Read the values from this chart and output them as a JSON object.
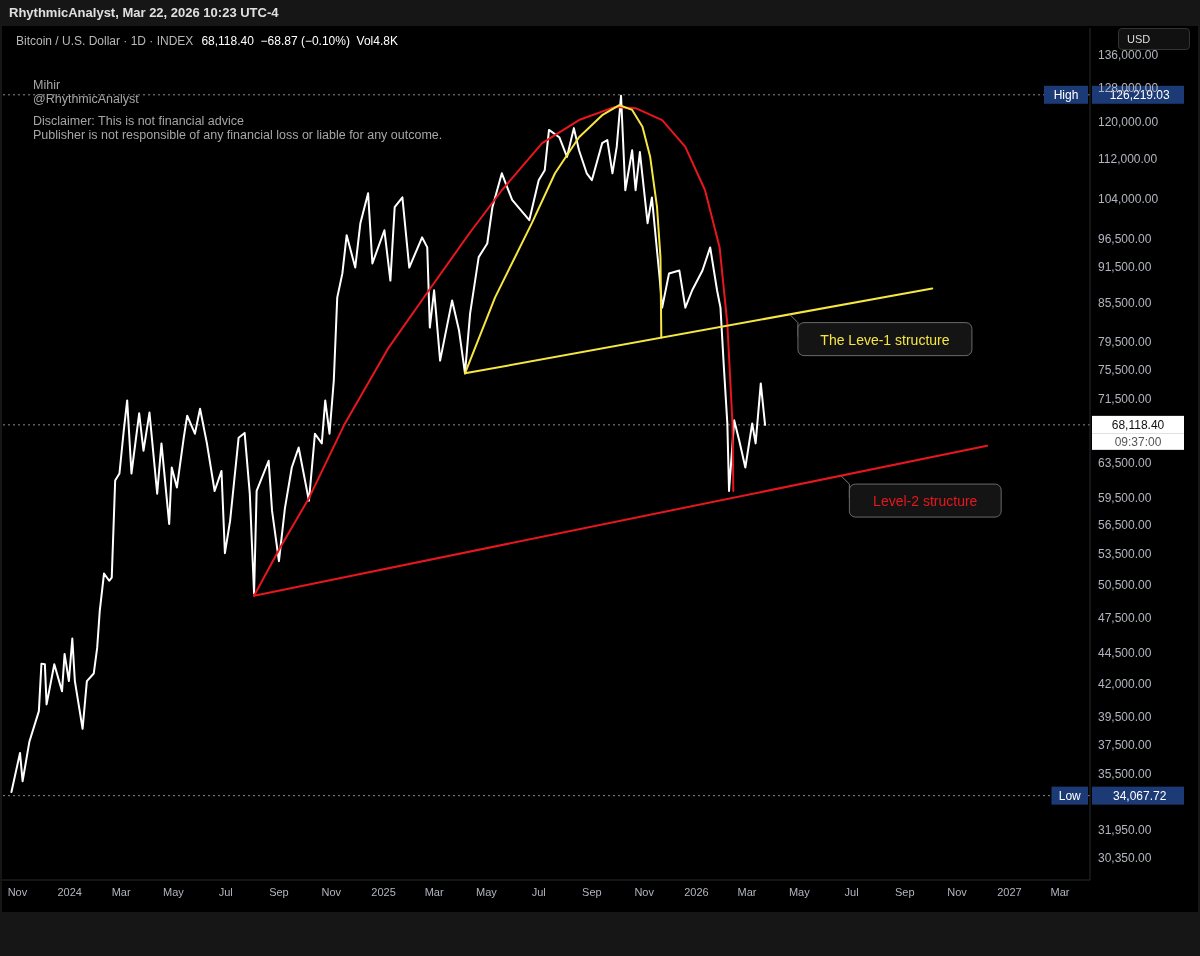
{
  "chart_data": {
    "type": "line",
    "title": "Bitcoin / U.S. Dollar · 1D · INDEX",
    "subtitle": "68,118.40  −68.87 (−0.10%)  Vol4.8K",
    "ylabel": "USD",
    "log": true,
    "grid": false,
    "marker": "none",
    "line_style": "solid",
    "xlim": [
      "2023-10-14",
      "2027-04-05"
    ],
    "xticks": [
      {
        "value": "2023-11-01",
        "label": "Nov"
      },
      {
        "value": "2024-01-01",
        "label": "2024"
      },
      {
        "value": "2024-03-01",
        "label": "Mar"
      },
      {
        "value": "2024-05-01",
        "label": "May"
      },
      {
        "value": "2024-07-01",
        "label": "Jul"
      },
      {
        "value": "2024-09-01",
        "label": "Sep"
      },
      {
        "value": "2024-11-01",
        "label": "Nov"
      },
      {
        "value": "2025-01-01",
        "label": "2025"
      },
      {
        "value": "2025-03-01",
        "label": "Mar"
      },
      {
        "value": "2025-05-01",
        "label": "May"
      },
      {
        "value": "2025-07-01",
        "label": "Jul"
      },
      {
        "value": "2025-09-01",
        "label": "Sep"
      },
      {
        "value": "2025-11-01",
        "label": "Nov"
      },
      {
        "value": "2026-01-01",
        "label": "2026"
      },
      {
        "value": "2026-03-01",
        "label": "Mar"
      },
      {
        "value": "2026-05-01",
        "label": "May"
      },
      {
        "value": "2026-07-01",
        "label": "Jul"
      },
      {
        "value": "2026-09-01",
        "label": "Sep"
      },
      {
        "value": "2026-11-01",
        "label": "Nov"
      },
      {
        "value": "2027-01-01",
        "label": "2027"
      },
      {
        "value": "2027-03-01",
        "label": "Mar"
      }
    ],
    "ylim": [
      29100,
      143000
    ],
    "yticks": [
      {
        "value": 30350,
        "label": "30,350.00"
      },
      {
        "value": 31950,
        "label": "31,950.00"
      },
      {
        "value": 35500,
        "label": "35,500.00"
      },
      {
        "value": 37500,
        "label": "37,500.00"
      },
      {
        "value": 39500,
        "label": "39,500.00"
      },
      {
        "value": 42000,
        "label": "42,000.00"
      },
      {
        "value": 44500,
        "label": "44,500.00"
      },
      {
        "value": 47500,
        "label": "47,500.00"
      },
      {
        "value": 50500,
        "label": "50,500.00"
      },
      {
        "value": 53500,
        "label": "53,500.00"
      },
      {
        "value": 56500,
        "label": "56,500.00"
      },
      {
        "value": 59500,
        "label": "59,500.00"
      },
      {
        "value": 63500,
        "label": "63,500.00"
      },
      {
        "value": 71500,
        "label": "71,500.00"
      },
      {
        "value": 75500,
        "label": "75,500.00"
      },
      {
        "value": 79500,
        "label": "79,500.00"
      },
      {
        "value": 85500,
        "label": "85,500.00"
      },
      {
        "value": 91500,
        "label": "91,500.00"
      },
      {
        "value": 96500,
        "label": "96,500.00"
      },
      {
        "value": 104000,
        "label": "104,000.00"
      },
      {
        "value": 112000,
        "label": "112,000.00"
      },
      {
        "value": 120000,
        "label": "120,000.00"
      },
      {
        "value": 128000,
        "label": "128,000.00"
      },
      {
        "value": 136000,
        "label": "136,000.00"
      }
    ],
    "ref_lines": [
      {
        "axis": "y",
        "value": 126219.03,
        "label": "High 126,219.03",
        "color": "#8a8a8a",
        "line_style": "dotted"
      },
      {
        "axis": "y",
        "value": 34067.72,
        "label": "Low 34,067.72",
        "color": "#8a8a8a",
        "line_style": "dotted"
      },
      {
        "axis": "y",
        "value": 68118.4,
        "label": "68,118.40",
        "color": "#8a8a8a",
        "line_style": "dotted"
      }
    ],
    "annotations": [
      "RhythmicAnalyst, Mar 22, 2026 10:23 UTC-4",
      "Mihir",
      "@RhythmicAnalyst",
      "Disclaimer: This is not financial advice",
      "Publisher is not responsible of any financial loss or liable for any outcome.",
      {
        "text": "The Leve-1 structure",
        "x": "2026-04-20",
        "y": 83700
      },
      {
        "text": "Level-2 structure",
        "x": "2026-06-19",
        "y": 61900
      },
      "09:37:00"
    ],
    "series": [
      {
        "color": "#ffffff",
        "x": [
          "2023-10-25",
          "2023-11-04",
          "2023-11-07",
          "2023-11-15",
          "2023-11-26",
          "2023-11-29",
          "2023-12-03",
          "2023-12-05",
          "2023-12-14",
          "2023-12-23",
          "2023-12-26",
          "2023-12-31",
          "2024-01-04",
          "2024-01-07",
          "2024-01-16",
          "2024-01-21",
          "2024-01-29",
          "2024-02-02",
          "2024-02-05",
          "2024-02-10",
          "2024-02-16",
          "2024-02-19",
          "2024-02-23",
          "2024-02-28",
          "2024-03-04",
          "2024-03-08",
          "2024-03-13",
          "2024-03-22",
          "2024-03-27",
          "2024-04-03",
          "2024-04-12",
          "2024-04-17",
          "2024-04-26",
          "2024-04-29",
          "2024-05-05",
          "2024-05-13",
          "2024-05-17",
          "2024-05-26",
          "2024-06-01",
          "2024-06-09",
          "2024-06-18",
          "2024-06-26",
          "2024-06-30",
          "2024-07-06",
          "2024-07-16",
          "2024-07-23",
          "2024-07-29",
          "2024-08-03",
          "2024-08-06",
          "2024-08-20",
          "2024-08-24",
          "2024-09-01",
          "2024-09-08",
          "2024-09-16",
          "2024-09-24",
          "2024-10-06",
          "2024-10-13",
          "2024-10-21",
          "2024-10-25",
          "2024-10-30",
          "2024-11-04",
          "2024-11-08",
          "2024-11-14",
          "2024-11-19",
          "2024-11-29",
          "2024-12-05",
          "2024-12-14",
          "2024-12-19",
          "2025-01-02",
          "2025-01-09",
          "2025-01-14",
          "2025-01-23",
          "2025-01-31",
          "2025-02-15",
          "2025-02-21",
          "2025-02-24",
          "2025-03-01",
          "2025-03-08",
          "2025-03-22",
          "2025-03-30",
          "2025-04-06",
          "2025-04-12",
          "2025-04-22",
          "2025-05-02",
          "2025-05-08",
          "2025-05-19",
          "2025-05-31",
          "2025-06-20",
          "2025-07-01",
          "2025-07-08",
          "2025-07-13",
          "2025-07-25",
          "2025-08-03",
          "2025-08-11",
          "2025-08-17",
          "2025-08-26",
          "2025-09-01",
          "2025-09-13",
          "2025-09-19",
          "2025-09-25",
          "2025-09-30",
          "2025-10-05",
          "2025-10-10",
          "2025-10-18",
          "2025-10-22",
          "2025-10-27",
          "2025-11-05",
          "2025-11-10",
          "2025-11-19",
          "2025-11-22",
          "2025-11-30",
          "2025-12-12",
          "2025-12-19",
          "2025-12-27",
          "2026-01-08",
          "2026-01-17",
          "2026-01-25",
          "2026-01-29",
          "2026-02-02",
          "2026-02-06",
          "2026-02-08",
          "2026-02-14",
          "2026-02-20",
          "2026-02-27",
          "2026-03-07",
          "2026-03-11",
          "2026-03-17",
          "2026-03-22"
        ],
        "values": [
          34300,
          36900,
          35000,
          37700,
          39900,
          43600,
          43550,
          40400,
          43550,
          41400,
          44400,
          42200,
          45700,
          42200,
          38600,
          42200,
          42800,
          44900,
          48100,
          51600,
          50900,
          51200,
          61400,
          62200,
          67400,
          71300,
          62200,
          69600,
          64900,
          69700,
          59900,
          65800,
          56600,
          62900,
          60600,
          66500,
          69300,
          67000,
          70200,
          65800,
          60200,
          62500,
          53600,
          56900,
          66500,
          67100,
          59900,
          49700,
          60200,
          63700,
          58000,
          52800,
          58300,
          62900,
          65300,
          59100,
          67000,
          65800,
          71300,
          67000,
          74000,
          86400,
          90400,
          97100,
          91400,
          99300,
          105000,
          92100,
          98000,
          89200,
          102300,
          104200,
          91400,
          96700,
          94900,
          81700,
          87600,
          76800,
          85950,
          81300,
          75000,
          83900,
          93200,
          95600,
          102300,
          109000,
          103700,
          99850,
          107600,
          109600,
          118200,
          116600,
          112400,
          118600,
          113800,
          109000,
          107600,
          115300,
          116000,
          109000,
          114500,
          126000,
          105600,
          113800,
          105600,
          113400,
          99300,
          104200,
          89700,
          84800,
          90400,
          90900,
          84800,
          87600,
          90900,
          94900,
          87600,
          84800,
          75800,
          68300,
          60200,
          68700,
          66100,
          62900,
          68300,
          65800,
          73600,
          68118.4
        ]
      },
      {
        "color": "#e8161e",
        "x": [
          "2024-08-03",
          "2026-12-06"
        ],
        "values": [
          49500,
          65500
        ]
      },
      {
        "color": "#e8161e",
        "x": [
          "2024-08-03",
          "2024-09-02",
          "2024-10-06",
          "2024-11-17",
          "2025-01-07",
          "2025-02-23",
          "2025-04-11",
          "2025-05-19",
          "2025-07-05",
          "2025-08-17",
          "2025-09-28",
          "2025-10-22",
          "2025-11-22",
          "2025-12-19",
          "2026-01-11",
          "2026-01-28",
          "2026-02-06",
          "2026-02-12",
          "2026-02-13"
        ],
        "values": [
          49500,
          54100,
          59400,
          68300,
          78700,
          87600,
          97400,
          105600,
          115300,
          120400,
          123400,
          123100,
          120400,
          114500,
          105600,
          94900,
          82300,
          68300,
          60200
        ]
      },
      {
        "color": "#f5e642",
        "x": [
          "2025-04-06",
          "2026-10-03"
        ],
        "values": [
          75000,
          87900
        ]
      },
      {
        "color": "#f5e642",
        "x": [
          "2025-04-06",
          "2025-05-11",
          "2025-06-23",
          "2025-07-20",
          "2025-08-17",
          "2025-09-13",
          "2025-10-03",
          "2025-10-18",
          "2025-10-30",
          "2025-11-08",
          "2025-11-16",
          "2025-11-20",
          "2025-11-21"
        ],
        "values": [
          75000,
          86400,
          99300,
          109000,
          116600,
          121500,
          123800,
          122700,
          118900,
          112400,
          102300,
          93200,
          80200
        ]
      }
    ]
  }
}
